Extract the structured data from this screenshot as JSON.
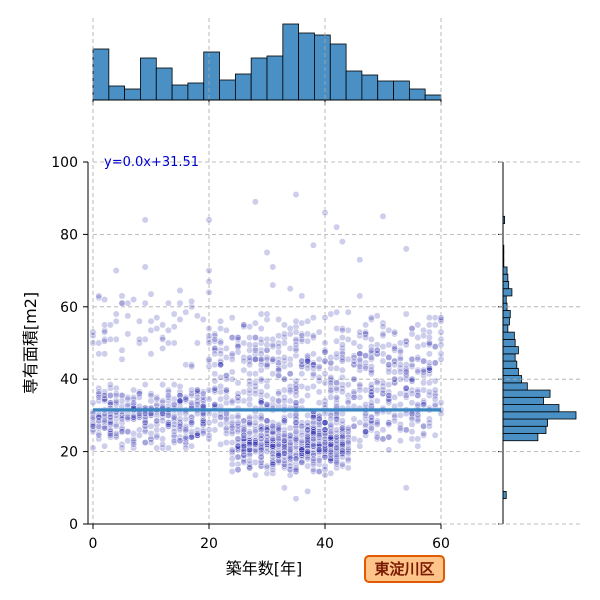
{
  "chart_data": {
    "type": "scatter",
    "xlabel": "築年数[年]",
    "ylabel": "専有面積[m2]",
    "xlim": [
      0,
      60
    ],
    "ylim": [
      0,
      100
    ],
    "xticks": [
      0,
      20,
      40,
      60
    ],
    "yticks": [
      0,
      20,
      40,
      60,
      80,
      100
    ],
    "grid": true,
    "annotation": "y=0.0x+31.51",
    "badge": "東淀川区",
    "regression": {
      "slope": 0.0,
      "intercept": 31.51
    },
    "colors": {
      "points": "#1a1aaa",
      "line": "#3a86c0",
      "hist": "#4a90c4",
      "badge_bg": "#ffc48a",
      "badge_border": "#e05a00"
    },
    "top_histogram": {
      "bin_edges": [
        0,
        2.73,
        5.45,
        8.18,
        10.91,
        13.64,
        16.36,
        19.09,
        21.82,
        24.55,
        27.27,
        30,
        32.73,
        35.45,
        38.18,
        40.91,
        43.64,
        46.36,
        49.09,
        51.82,
        54.55,
        57.27,
        60
      ],
      "counts": [
        51,
        14,
        11,
        42,
        32,
        15,
        17,
        48,
        20,
        26,
        42,
        44,
        76,
        67,
        65,
        56,
        29,
        25,
        19,
        19,
        11,
        5,
        2
      ]
    },
    "right_histogram": {
      "bin_edges": [
        7,
        9,
        11,
        13,
        15,
        17,
        19,
        21,
        23,
        25,
        27,
        29,
        31,
        33,
        35,
        37,
        39,
        41,
        43,
        45,
        47,
        49,
        51,
        53,
        55,
        57,
        59,
        61,
        63,
        65,
        67,
        69,
        71,
        73,
        75,
        77,
        79,
        81,
        83,
        85
      ],
      "counts": [
        4,
        0,
        0,
        0,
        0,
        0,
        0,
        0,
        43,
        53,
        55,
        90,
        69,
        50,
        58,
        30,
        23,
        19,
        17,
        15,
        19,
        15,
        14,
        6,
        8,
        9,
        5,
        4,
        11,
        7,
        6,
        5,
        1,
        1,
        1,
        0,
        0,
        0,
        2
      ]
    },
    "clusters": [
      {
        "x": [
          0,
          60
        ],
        "y": [
          20,
          40
        ],
        "count": 420
      },
      {
        "x": [
          24,
          44
        ],
        "y": [
          13,
          30
        ],
        "count": 520
      },
      {
        "x": [
          0,
          20
        ],
        "y": [
          20,
          40
        ],
        "count": 220
      },
      {
        "x": [
          20,
          60
        ],
        "y": [
          30,
          60
        ],
        "count": 480
      },
      {
        "x": [
          0,
          20
        ],
        "y": [
          40,
          70
        ],
        "count": 60
      }
    ],
    "extra_points": [
      {
        "x": 9,
        "y": 84
      },
      {
        "x": 20,
        "y": 84
      },
      {
        "x": 35,
        "y": 91
      },
      {
        "x": 28,
        "y": 89
      },
      {
        "x": 31,
        "y": 71
      },
      {
        "x": 9,
        "y": 71
      },
      {
        "x": 4,
        "y": 70
      },
      {
        "x": 20,
        "y": 70
      },
      {
        "x": 36,
        "y": 63
      },
      {
        "x": 34,
        "y": 65
      },
      {
        "x": 43,
        "y": 78
      },
      {
        "x": 38,
        "y": 77
      },
      {
        "x": 46,
        "y": 73
      },
      {
        "x": 54,
        "y": 76
      },
      {
        "x": 50,
        "y": 85
      },
      {
        "x": 42,
        "y": 82
      },
      {
        "x": 40,
        "y": 86
      },
      {
        "x": 30,
        "y": 75
      },
      {
        "x": 1,
        "y": 50
      },
      {
        "x": 1,
        "y": 47
      },
      {
        "x": 35,
        "y": 7
      },
      {
        "x": 37,
        "y": 9
      },
      {
        "x": 54,
        "y": 10
      },
      {
        "x": 33,
        "y": 10
      },
      {
        "x": 31,
        "y": 66
      },
      {
        "x": 20,
        "y": 67
      },
      {
        "x": 7,
        "y": 62
      },
      {
        "x": 58,
        "y": 57
      },
      {
        "x": 55,
        "y": 54
      },
      {
        "x": 60,
        "y": 57
      },
      {
        "x": 46,
        "y": 63
      }
    ]
  }
}
